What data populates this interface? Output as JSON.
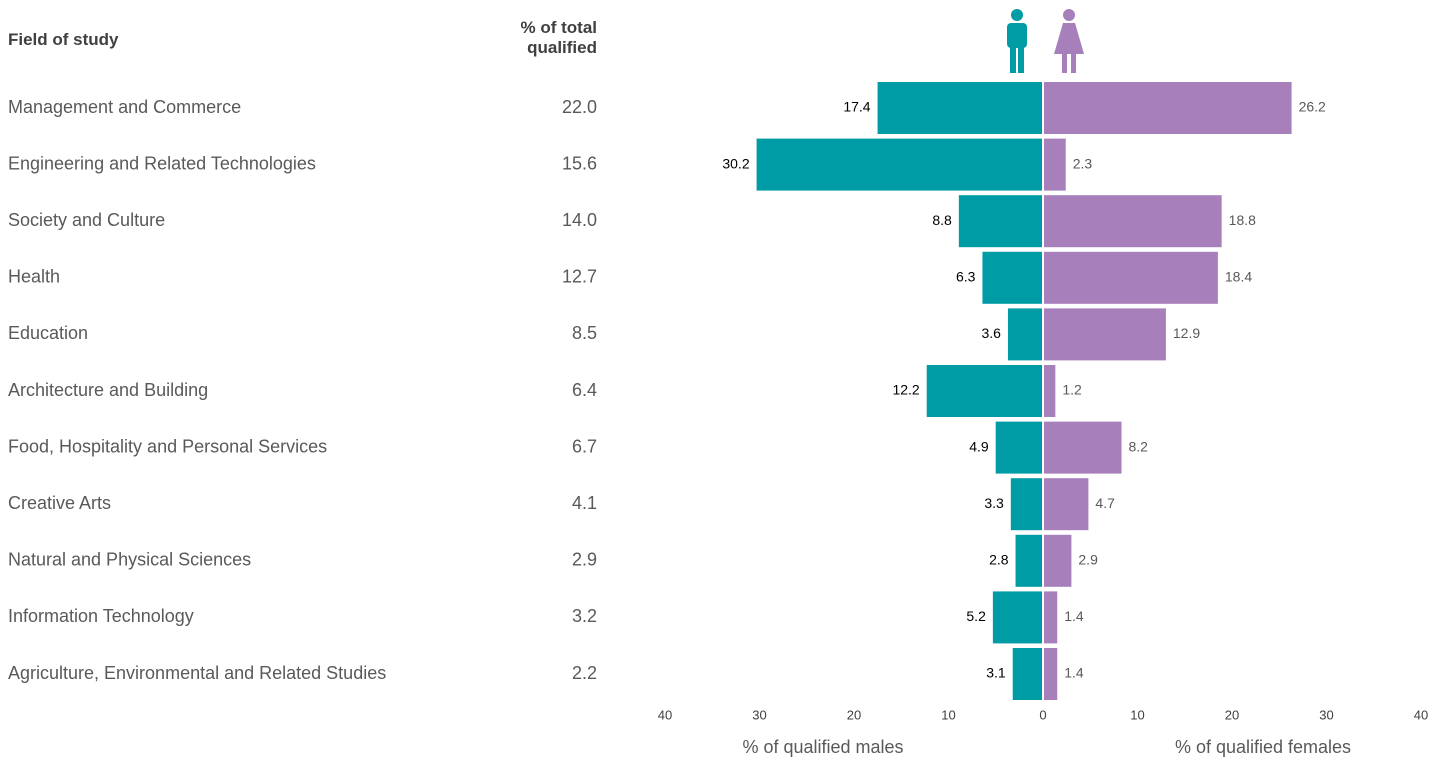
{
  "chart_data": {
    "type": "butterfly",
    "category_header": "Field of study",
    "categories": [
      "Management and Commerce",
      "Engineering and Related Technologies",
      "Society and Culture",
      "Health",
      "Education",
      "Architecture and Building",
      "Food, Hospitality and Personal Services",
      "Creative Arts",
      "Natural and Physical Sciences",
      "Information Technology",
      "Agriculture, Environmental and Related Studies"
    ],
    "total": {
      "header": "% of total qualified",
      "values": [
        22.0,
        15.6,
        14.0,
        12.7,
        8.5,
        6.4,
        6.7,
        4.1,
        2.9,
        3.2,
        2.2
      ],
      "value_labels": [
        "22.0",
        "15.6",
        "14.0",
        "12.7",
        "8.5",
        "6.4",
        "6.7",
        "4.1",
        "2.9",
        "3.2",
        "2.2"
      ]
    },
    "series": [
      {
        "axis_label": "% of qualified males",
        "color": "#009ca6",
        "side": "left",
        "values": [
          17.4,
          30.2,
          8.8,
          6.3,
          3.6,
          12.2,
          4.9,
          3.3,
          2.8,
          5.2,
          3.1
        ]
      },
      {
        "axis_label": "% of qualified females",
        "color": "#a77fbb",
        "side": "right",
        "values": [
          26.2,
          2.3,
          18.8,
          18.4,
          12.9,
          1.2,
          8.2,
          4.7,
          2.9,
          1.4,
          1.4
        ]
      }
    ],
    "xlim": [
      0,
      40
    ],
    "xticks": [
      0,
      10,
      20,
      30,
      40
    ]
  }
}
